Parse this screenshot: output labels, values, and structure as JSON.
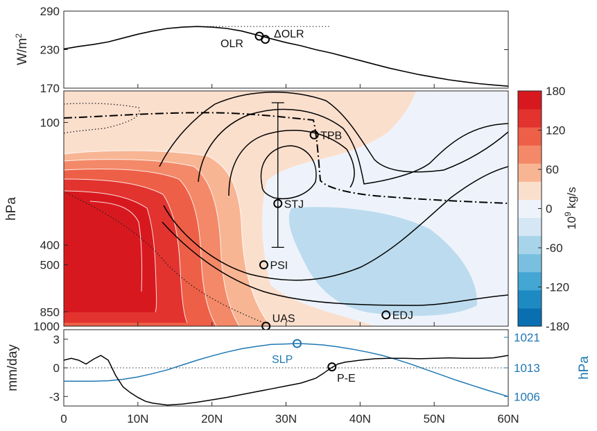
{
  "chart_data": [
    {
      "type": "line",
      "panel": "olr",
      "ylabel": "W/m",
      "ylabel_sup": "2",
      "ylim": [
        170,
        290
      ],
      "yticks": [
        "290",
        "230",
        "170"
      ],
      "ytick_values": [
        290,
        230,
        170
      ],
      "series": [
        {
          "x": [
            0,
            2,
            4,
            6,
            8,
            10,
            12,
            14,
            16,
            18,
            20,
            22,
            24,
            26,
            27,
            28,
            30,
            32,
            34,
            36,
            38,
            40,
            42,
            44,
            46,
            48,
            50,
            52,
            54,
            56,
            58,
            60
          ],
          "values": [
            231,
            235,
            238,
            242,
            248,
            254,
            259,
            263,
            265,
            266,
            265,
            263,
            259,
            253,
            250,
            247,
            241,
            236,
            230,
            225,
            219,
            213,
            207,
            201,
            196,
            191,
            187,
            183,
            180,
            177,
            175,
            173
          ]
        },
        {
          "x": [
            18,
            20,
            22,
            24,
            26,
            28,
            30,
            32,
            34,
            36
          ],
          "values": [
            266,
            266,
            266,
            266,
            266,
            266,
            266,
            266,
            266,
            266
          ],
          "style": "dotted"
        }
      ],
      "markers": [
        {
          "x": 26.4,
          "y": 251,
          "label": "OLR"
        },
        {
          "x": 27.2,
          "y": 246,
          "label": "ΔOLR",
          "label_prefix": "Δ",
          "label_rest": "OLR"
        }
      ]
    },
    {
      "type": "heatmap",
      "panel": "streamfunction",
      "ylabel": "hPa",
      "yticks": [
        "100",
        "400",
        "500",
        "850",
        "1000"
      ],
      "ytick_values": [
        100,
        400,
        500,
        850,
        1000
      ],
      "xlim": [
        0,
        60
      ],
      "colorbar": {
        "label": "10",
        "label_sup": "9",
        "label_unit": " kg/s",
        "ticks": [
          "180",
          "120",
          "60",
          "0",
          "-60",
          "-120",
          "-180"
        ],
        "tick_values": [
          180,
          120,
          60,
          0,
          -60,
          -120,
          -180
        ],
        "levels": [
          -180,
          -150,
          -120,
          -90,
          -60,
          -30,
          0,
          30,
          60,
          90,
          120,
          150,
          180
        ],
        "colors": [
          "#0a6fb1",
          "#1e8ac2",
          "#43a6d3",
          "#79c0e0",
          "#a8d4ea",
          "#d5e7f4",
          "#eef3fb",
          "#fbdfcd",
          "#f8b594",
          "#f38968",
          "#ee5f47",
          "#e2332f",
          "#d7191f"
        ]
      },
      "annotations": [
        {
          "label": "TPB",
          "x": 33.8,
          "p": 115
        },
        {
          "label": "STJ",
          "x": 28.9,
          "p": 250
        },
        {
          "label": "PSI",
          "x": 27.0,
          "p": 500
        },
        {
          "label": "EDJ",
          "x": 43.5,
          "p": 880
        },
        {
          "label": "UAS",
          "x": 27.3,
          "p": 1000
        }
      ],
      "error_bar": {
        "x": 28.9,
        "p_top": 80,
        "p_bottom": 410
      }
    },
    {
      "type": "line",
      "panel": "surface",
      "ylabel": "mm/day",
      "ylabel_right": "hPa",
      "ylim": [
        -4,
        4
      ],
      "yticks": [
        "3",
        "0",
        "-3"
      ],
      "ytick_values": [
        3,
        0,
        -3
      ],
      "yticks_right": [
        "1021",
        "1013",
        "1006"
      ],
      "ytick_values_right": [
        3.2,
        0,
        -3.0
      ],
      "xticks": [
        "0",
        "10N",
        "20N",
        "30N",
        "40N",
        "50N",
        "60N"
      ],
      "xtick_values": [
        0,
        10,
        20,
        30,
        40,
        50,
        60
      ],
      "colors": {
        "pe": "#000000",
        "slp": "#1f77b4"
      },
      "series": [
        {
          "name": "P-E",
          "x": [
            0,
            1,
            2,
            3,
            4,
            5,
            6,
            7,
            8,
            9,
            10,
            11,
            12,
            13,
            14,
            15,
            16,
            18,
            20,
            22,
            24,
            26,
            28,
            30,
            32,
            34,
            35,
            36,
            37,
            38,
            40,
            42,
            44,
            46,
            48,
            50,
            52,
            54,
            56,
            58,
            60
          ],
          "values": [
            0.8,
            1.0,
            0.8,
            0.4,
            0.9,
            1.3,
            0.8,
            -0.8,
            -2.0,
            -2.6,
            -3.1,
            -3.5,
            -3.7,
            -3.8,
            -3.9,
            -3.85,
            -3.8,
            -3.6,
            -3.35,
            -3.1,
            -2.8,
            -2.5,
            -2.2,
            -1.9,
            -1.6,
            -1.1,
            -0.6,
            -0.05,
            0.4,
            0.6,
            0.8,
            0.95,
            1.0,
            1.0,
            0.95,
            1.0,
            1.05,
            1.0,
            1.0,
            1.05,
            1.3
          ]
        },
        {
          "name": "SLP",
          "x": [
            0,
            2,
            4,
            6,
            8,
            10,
            12,
            14,
            16,
            18,
            20,
            22,
            24,
            26,
            28,
            30,
            31.5,
            33,
            35,
            37,
            39,
            41,
            43,
            45,
            47,
            49,
            51,
            53,
            55,
            57,
            60
          ],
          "values": [
            -1.4,
            -1.4,
            -1.4,
            -1.35,
            -1.2,
            -0.95,
            -0.6,
            -0.2,
            0.3,
            0.8,
            1.25,
            1.65,
            2.0,
            2.25,
            2.45,
            2.5,
            2.55,
            2.5,
            2.4,
            2.2,
            1.95,
            1.65,
            1.3,
            0.85,
            0.35,
            -0.2,
            -0.75,
            -1.3,
            -1.8,
            -2.3,
            -3.0
          ]
        }
      ],
      "markers": [
        {
          "x": 31.5,
          "y": 2.55,
          "label": "SLP"
        },
        {
          "x": 36.2,
          "y": 0.1,
          "label": "P-E"
        }
      ]
    }
  ]
}
